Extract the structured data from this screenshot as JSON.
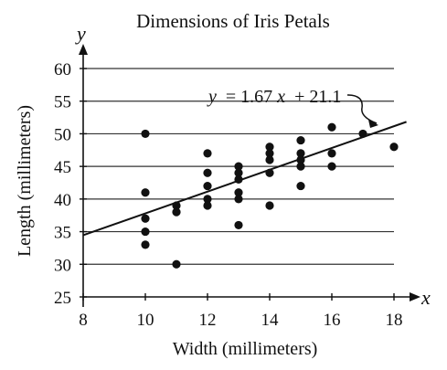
{
  "chart_data": {
    "type": "scatter",
    "title": "Dimensions of Iris Petals",
    "xlabel": "Width (millimeters)",
    "ylabel": "Length (millimeters)",
    "x_axis_letter": "x",
    "y_axis_letter": "y",
    "xlim": [
      8,
      18
    ],
    "ylim": [
      25,
      60
    ],
    "x_ticks": [
      8,
      10,
      12,
      14,
      16,
      18
    ],
    "y_ticks": [
      25,
      30,
      35,
      40,
      45,
      50,
      55,
      60
    ],
    "grid": "horizontal",
    "points": [
      {
        "x": 10,
        "y": 50
      },
      {
        "x": 10,
        "y": 41
      },
      {
        "x": 10,
        "y": 37
      },
      {
        "x": 10,
        "y": 35
      },
      {
        "x": 10,
        "y": 33
      },
      {
        "x": 11,
        "y": 39
      },
      {
        "x": 11,
        "y": 38
      },
      {
        "x": 11,
        "y": 30
      },
      {
        "x": 12,
        "y": 47
      },
      {
        "x": 12,
        "y": 44
      },
      {
        "x": 12,
        "y": 42
      },
      {
        "x": 12,
        "y": 40
      },
      {
        "x": 12,
        "y": 39
      },
      {
        "x": 13,
        "y": 45
      },
      {
        "x": 13,
        "y": 44
      },
      {
        "x": 13,
        "y": 43
      },
      {
        "x": 13,
        "y": 41
      },
      {
        "x": 13,
        "y": 40
      },
      {
        "x": 13,
        "y": 36
      },
      {
        "x": 14,
        "y": 48
      },
      {
        "x": 14,
        "y": 47
      },
      {
        "x": 14,
        "y": 46
      },
      {
        "x": 14,
        "y": 44
      },
      {
        "x": 14,
        "y": 39
      },
      {
        "x": 15,
        "y": 49
      },
      {
        "x": 15,
        "y": 47
      },
      {
        "x": 15,
        "y": 46
      },
      {
        "x": 15,
        "y": 45
      },
      {
        "x": 15,
        "y": 42
      },
      {
        "x": 16,
        "y": 51
      },
      {
        "x": 16,
        "y": 47
      },
      {
        "x": 16,
        "y": 45
      },
      {
        "x": 17,
        "y": 50
      },
      {
        "x": 18,
        "y": 48
      }
    ],
    "regression": {
      "slope": 1.67,
      "intercept": 21.1,
      "label": "= 1.67",
      "label_var_y": "y",
      "label_var_x": "x",
      "label_tail": "+ 21.1"
    }
  }
}
